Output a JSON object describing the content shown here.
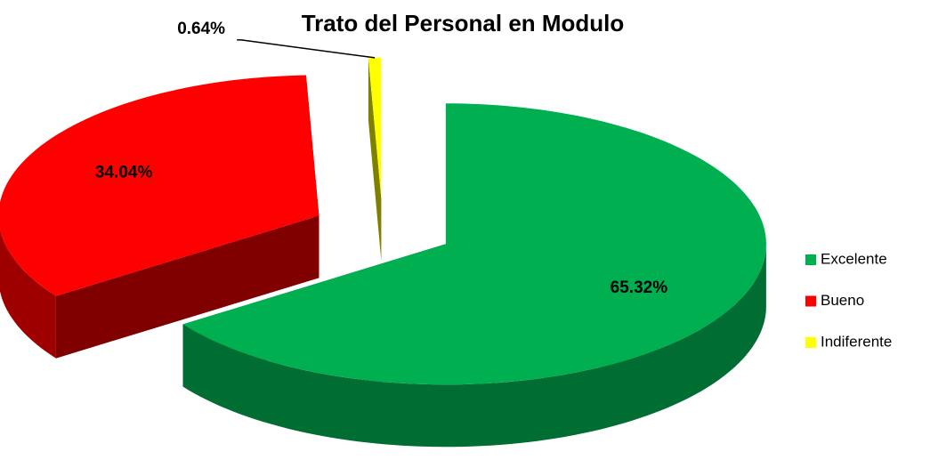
{
  "chart_data": {
    "type": "pie3d",
    "title": "Trato del Personal en Modulo",
    "categories": [
      "Excelente",
      "Bueno",
      "Indiferente"
    ],
    "values": [
      65.32,
      34.04,
      0.64
    ],
    "value_labels": [
      "65.32%",
      "34.04%",
      "0.64%"
    ],
    "colors": [
      "#00b050",
      "#ff0000",
      "#ffff00"
    ],
    "legend": "right"
  }
}
